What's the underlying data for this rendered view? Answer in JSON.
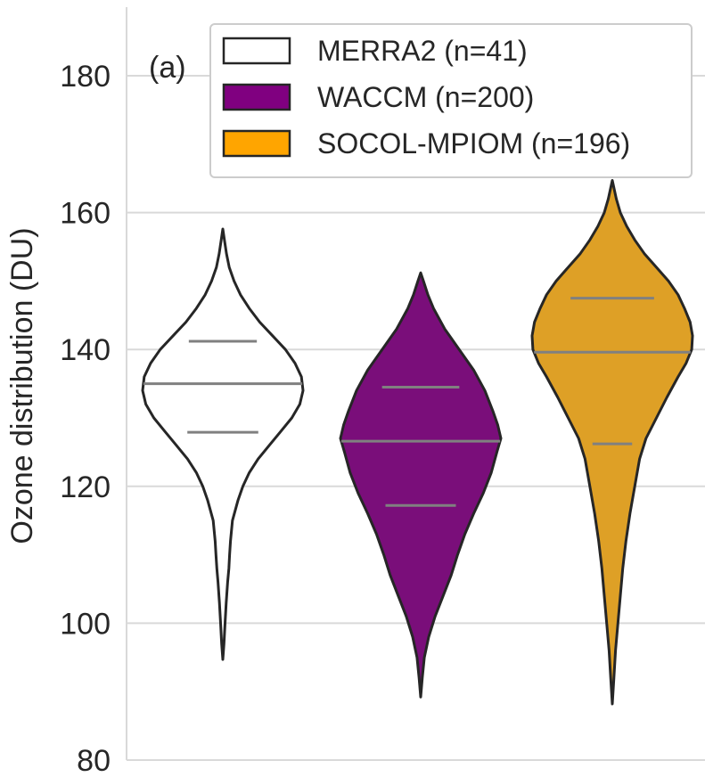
{
  "chart_data": {
    "type": "violin",
    "panel_label": "(a)",
    "ylabel": "Ozone distribution (DU)",
    "ylim": [
      80,
      190
    ],
    "yticks": [
      80,
      100,
      120,
      140,
      160,
      180
    ],
    "grid": "horizontal",
    "legend_position": "top-right",
    "colors": {
      "outline": "#262626",
      "quartile_line": "#808080",
      "grid": "#d9d9d9"
    },
    "series": [
      {
        "name": "MERRA2 (n=41)",
        "color": "#ffffff",
        "legend_color": "#ffffff",
        "min": 94.7,
        "max": 157.6,
        "q1": 127.9,
        "median": 135.0,
        "q3": 141.2,
        "profile": [
          [
            94.7,
            0.0
          ],
          [
            97,
            0.015
          ],
          [
            100,
            0.028
          ],
          [
            103,
            0.042
          ],
          [
            106,
            0.06
          ],
          [
            108,
            0.075
          ],
          [
            110,
            0.085
          ],
          [
            112,
            0.095
          ],
          [
            115,
            0.12
          ],
          [
            118,
            0.19
          ],
          [
            120,
            0.25
          ],
          [
            122,
            0.33
          ],
          [
            124,
            0.44
          ],
          [
            126,
            0.58
          ],
          [
            128,
            0.72
          ],
          [
            130,
            0.86
          ],
          [
            132,
            0.96
          ],
          [
            134,
            1.0
          ],
          [
            136,
            0.98
          ],
          [
            138,
            0.9
          ],
          [
            140,
            0.78
          ],
          [
            142,
            0.62
          ],
          [
            144,
            0.46
          ],
          [
            146,
            0.33
          ],
          [
            148,
            0.22
          ],
          [
            150,
            0.14
          ],
          [
            152,
            0.08
          ],
          [
            154,
            0.045
          ],
          [
            156,
            0.02
          ],
          [
            157.6,
            0.0
          ]
        ]
      },
      {
        "name": "WACCM (n=200)",
        "color": "#7a0e7a",
        "legend_color": "#800080",
        "min": 89.2,
        "max": 151.2,
        "q1": 117.2,
        "median": 126.6,
        "q3": 134.5,
        "profile": [
          [
            89.2,
            0.0
          ],
          [
            92,
            0.02
          ],
          [
            95,
            0.045
          ],
          [
            98,
            0.1
          ],
          [
            101,
            0.18
          ],
          [
            104,
            0.28
          ],
          [
            107,
            0.38
          ],
          [
            110,
            0.46
          ],
          [
            113,
            0.55
          ],
          [
            116,
            0.66
          ],
          [
            119,
            0.78
          ],
          [
            122,
            0.88
          ],
          [
            125,
            0.95
          ],
          [
            127,
            1.0
          ],
          [
            129,
            0.96
          ],
          [
            131,
            0.9
          ],
          [
            134,
            0.8
          ],
          [
            137,
            0.66
          ],
          [
            140,
            0.48
          ],
          [
            143,
            0.3
          ],
          [
            146,
            0.16
          ],
          [
            148,
            0.09
          ],
          [
            150,
            0.035
          ],
          [
            151.2,
            0.0
          ]
        ]
      },
      {
        "name": "SOCOL-MPIOM (n=196)",
        "color": "#dea026",
        "legend_color": "#ffa500",
        "min": 88.2,
        "max": 164.7,
        "q1": 126.2,
        "median": 139.6,
        "q3": 147.5,
        "profile": [
          [
            88.2,
            0.0
          ],
          [
            92,
            0.02
          ],
          [
            96,
            0.04
          ],
          [
            100,
            0.07
          ],
          [
            104,
            0.1
          ],
          [
            108,
            0.13
          ],
          [
            112,
            0.17
          ],
          [
            116,
            0.22
          ],
          [
            120,
            0.28
          ],
          [
            124,
            0.34
          ],
          [
            127,
            0.42
          ],
          [
            130,
            0.55
          ],
          [
            133,
            0.68
          ],
          [
            136,
            0.82
          ],
          [
            138,
            0.92
          ],
          [
            140,
            0.99
          ],
          [
            142,
            1.0
          ],
          [
            144,
            0.97
          ],
          [
            146,
            0.9
          ],
          [
            148,
            0.82
          ],
          [
            150,
            0.7
          ],
          [
            152,
            0.55
          ],
          [
            154,
            0.4
          ],
          [
            156,
            0.28
          ],
          [
            158,
            0.18
          ],
          [
            160,
            0.1
          ],
          [
            162,
            0.05
          ],
          [
            164.7,
            0.0
          ]
        ]
      }
    ]
  }
}
